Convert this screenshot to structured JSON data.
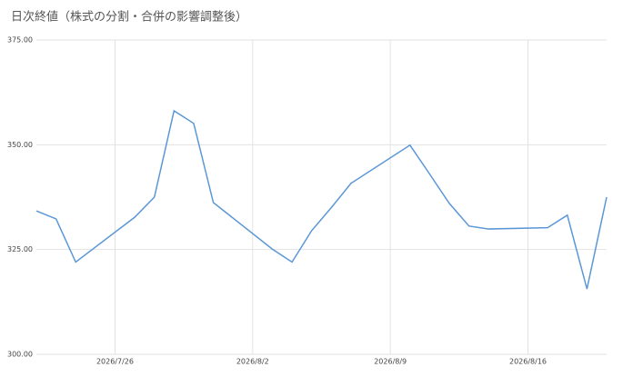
{
  "chart_data": {
    "type": "line",
    "title": "日次終値（株式の分割・合併の影響調整後）",
    "x": [
      "2026/7/22",
      "2026/7/23",
      "2026/7/24",
      "2026/7/27",
      "2026/7/28",
      "2026/7/29",
      "2026/7/30",
      "2026/7/31",
      "2026/8/3",
      "2026/8/4",
      "2026/8/5",
      "2026/8/6",
      "2026/8/7",
      "2026/8/10",
      "2026/8/11",
      "2026/8/12",
      "2026/8/13",
      "2026/8/14",
      "2026/8/17",
      "2026/8/18",
      "2026/8/19",
      "2026/8/20"
    ],
    "series": [
      {
        "color": "#5b97d6",
        "values": [
          334.2,
          332.3,
          322.0,
          332.7,
          337.5,
          358.1,
          355.1,
          336.2,
          325.1,
          322.0,
          329.5,
          335.0,
          340.8,
          349.9,
          343.0,
          336.0,
          330.6,
          329.9,
          330.2,
          333.2,
          315.6,
          337.5
        ]
      }
    ],
    "xlim": [
      "2026/7/22",
      "2026/8/20"
    ],
    "xticks": [
      "2026/7/26",
      "2026/8/2",
      "2026/8/9",
      "2026/8/16"
    ],
    "ylim": [
      300,
      375
    ],
    "yticks": [
      {
        "value": 300,
        "label": "300.00"
      },
      {
        "value": 325,
        "label": "325.00"
      },
      {
        "value": 350,
        "label": "350.00"
      },
      {
        "value": 375,
        "label": "375.00"
      }
    ],
    "grid": true
  }
}
